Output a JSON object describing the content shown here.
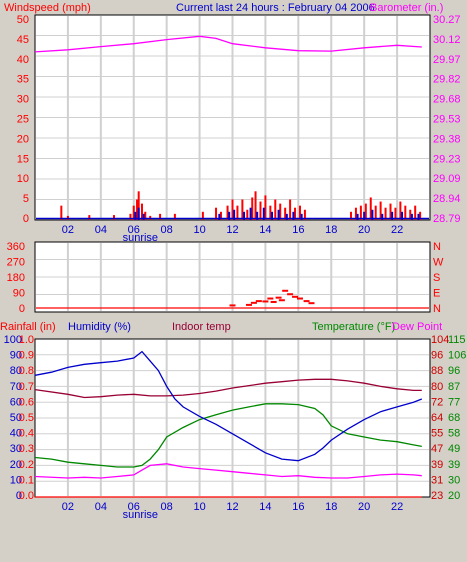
{
  "colors": {
    "background": "#d4d0c8",
    "plot_bg": "#ffffff",
    "grid": "#d0d0d0",
    "red": "#ff0000",
    "blue": "#0000cc",
    "magenta": "#ff00ff",
    "maroon": "#990033",
    "green": "#008800",
    "darkred": "#cc0000"
  },
  "header": {
    "title": "Current last 24 hours : February 04 2006"
  },
  "chart_data": [
    {
      "name": "wind-barometer",
      "type": "bar",
      "left_axis_label": "Windspeed (mph)",
      "right_axis_label": "Barometer (in.)",
      "left_ticks": [
        "50",
        "45",
        "40",
        "35",
        "30",
        "25",
        "20",
        "15",
        "10",
        "5",
        "0"
      ],
      "right_ticks": [
        "30.27",
        "30.12",
        "29.97",
        "29.82",
        "29.68",
        "29.53",
        "29.38",
        "29.23",
        "29.09",
        "28.94",
        "28.79"
      ],
      "ylim": [
        0,
        50
      ],
      "ylim_right": [
        28.79,
        30.27
      ],
      "x_ticks": [
        "02",
        "04",
        "06",
        "08",
        "10",
        "12",
        "14",
        "16",
        "18",
        "20",
        "22"
      ],
      "sunrise_label": "sunrise",
      "barometer_curve": [
        [
          0,
          41
        ],
        [
          2,
          41.5
        ],
        [
          4,
          42.3
        ],
        [
          6,
          43
        ],
        [
          8,
          44
        ],
        [
          10,
          44.8
        ],
        [
          11,
          44.3
        ],
        [
          12,
          43
        ],
        [
          14,
          42
        ],
        [
          16,
          41.3
        ],
        [
          18,
          41.2
        ],
        [
          20,
          42
        ],
        [
          22,
          42.6
        ],
        [
          23.5,
          42.2
        ]
      ],
      "gust_bars": [
        [
          1.6,
          3.5
        ],
        [
          2,
          1
        ],
        [
          3.3,
          1.2
        ],
        [
          4.8,
          1.2
        ],
        [
          5.8,
          1.5
        ],
        [
          6,
          3.5
        ],
        [
          6.2,
          5
        ],
        [
          6.3,
          7
        ],
        [
          6.5,
          4
        ],
        [
          6.7,
          2
        ],
        [
          7,
          1
        ],
        [
          7.6,
          1.5
        ],
        [
          8.5,
          1.5
        ],
        [
          10.2,
          2
        ],
        [
          11,
          3
        ],
        [
          11.3,
          2
        ],
        [
          11.7,
          3.5
        ],
        [
          12,
          5
        ],
        [
          12.3,
          3.5
        ],
        [
          12.6,
          5
        ],
        [
          12.9,
          2.5
        ],
        [
          13.2,
          5.5
        ],
        [
          13.4,
          7
        ],
        [
          13.7,
          4.5
        ],
        [
          14,
          6
        ],
        [
          14.3,
          3.5
        ],
        [
          14.6,
          5
        ],
        [
          14.9,
          4
        ],
        [
          15.2,
          3
        ],
        [
          15.5,
          5
        ],
        [
          15.8,
          3
        ],
        [
          16.1,
          3.5
        ],
        [
          16.4,
          2.5
        ],
        [
          19.2,
          2
        ],
        [
          19.5,
          3
        ],
        [
          19.8,
          3.5
        ],
        [
          20.1,
          4
        ],
        [
          20.4,
          5.5
        ],
        [
          20.7,
          3.5
        ],
        [
          21,
          4.5
        ],
        [
          21.3,
          3
        ],
        [
          21.6,
          4
        ],
        [
          21.9,
          3
        ],
        [
          22.2,
          4.5
        ],
        [
          22.5,
          3.5
        ],
        [
          22.8,
          2.5
        ],
        [
          23.1,
          3.5
        ],
        [
          23.4,
          2
        ]
      ],
      "wind_bars": [
        [
          6.1,
          2
        ],
        [
          6.3,
          3
        ],
        [
          6.6,
          1.5
        ],
        [
          11.2,
          1.5
        ],
        [
          11.8,
          2
        ],
        [
          12.1,
          2.5
        ],
        [
          12.7,
          2
        ],
        [
          13.1,
          3
        ],
        [
          13.5,
          2
        ],
        [
          13.9,
          3
        ],
        [
          14.4,
          2
        ],
        [
          14.8,
          2.5
        ],
        [
          15.3,
          1.5
        ],
        [
          15.7,
          2
        ],
        [
          16.2,
          1.5
        ],
        [
          19.6,
          1.5
        ],
        [
          20,
          2
        ],
        [
          20.5,
          2.5
        ],
        [
          21.1,
          1.5
        ],
        [
          21.7,
          2
        ],
        [
          22.3,
          2
        ],
        [
          22.9,
          1.5
        ],
        [
          23.3,
          1.5
        ]
      ]
    },
    {
      "name": "wind-direction",
      "type": "scatter",
      "left_ticks": [
        "360",
        "270",
        "180",
        "90",
        "0"
      ],
      "right_ticks": [
        "N",
        "W",
        "S",
        "E",
        "N"
      ],
      "ylim": [
        0,
        360
      ],
      "points": [
        [
          12,
          15
        ],
        [
          13,
          18
        ],
        [
          13.3,
          30
        ],
        [
          13.6,
          40
        ],
        [
          14,
          38
        ],
        [
          14.3,
          55
        ],
        [
          14.5,
          35
        ],
        [
          14.8,
          60
        ],
        [
          15,
          45
        ],
        [
          15.2,
          100
        ],
        [
          15.5,
          80
        ],
        [
          15.8,
          65
        ],
        [
          16.1,
          55
        ],
        [
          16.5,
          40
        ],
        [
          16.8,
          28
        ]
      ]
    },
    {
      "name": "rain-humidity-temp",
      "type": "line",
      "labels": {
        "rainfall": "Rainfall (in)",
        "humidity": "Humidity (%)",
        "indoor": "Indoor temp",
        "temperature": "Temperature (°F)",
        "dewpoint": "Dew Point"
      },
      "humidity_ticks": [
        "100",
        "90",
        "80",
        "70",
        "60",
        "50",
        "40",
        "30",
        "20",
        "10",
        "0"
      ],
      "rain_ticks": [
        "1.0",
        "0.9",
        "0.8",
        "0.7",
        "0.6",
        "0.5",
        "0.4",
        "0.3",
        "0.2",
        "0.1",
        "0.0"
      ],
      "right_ticks_a": [
        "104",
        "96",
        "88",
        "80",
        "72",
        "64",
        "55",
        "47",
        "39",
        "31",
        "23"
      ],
      "right_ticks_b": [
        "115",
        "106",
        "96",
        "87",
        "77",
        "68",
        "58",
        "49",
        "39",
        "30",
        "20"
      ],
      "ylim": [
        0,
        100
      ],
      "x_ticks": [
        "02",
        "04",
        "06",
        "08",
        "10",
        "12",
        "14",
        "16",
        "18",
        "20",
        "22"
      ],
      "sunrise_label": "sunrise",
      "humidity": [
        [
          0,
          77
        ],
        [
          1,
          79
        ],
        [
          2,
          82
        ],
        [
          3,
          84
        ],
        [
          4,
          85
        ],
        [
          5,
          86
        ],
        [
          6,
          88
        ],
        [
          6.5,
          92
        ],
        [
          7,
          86
        ],
        [
          7.5,
          80
        ],
        [
          8,
          70
        ],
        [
          8.5,
          62
        ],
        [
          9,
          57
        ],
        [
          10,
          51
        ],
        [
          11,
          46
        ],
        [
          12,
          40
        ],
        [
          13,
          34
        ],
        [
          14,
          28
        ],
        [
          15,
          24
        ],
        [
          16,
          23
        ],
        [
          17,
          27
        ],
        [
          17.5,
          31
        ],
        [
          18,
          36
        ],
        [
          19,
          43
        ],
        [
          20,
          49
        ],
        [
          21,
          54
        ],
        [
          22,
          57
        ],
        [
          23,
          60
        ],
        [
          23.5,
          62
        ]
      ],
      "indoor": [
        [
          0,
          68
        ],
        [
          2,
          65
        ],
        [
          3,
          63
        ],
        [
          4,
          63.5
        ],
        [
          5,
          64.5
        ],
        [
          6,
          65
        ],
        [
          7,
          64
        ],
        [
          8,
          64
        ],
        [
          9,
          64.5
        ],
        [
          10,
          65.5
        ],
        [
          11,
          67
        ],
        [
          12,
          69
        ],
        [
          13,
          70.5
        ],
        [
          14,
          72
        ],
        [
          15,
          73
        ],
        [
          16,
          74
        ],
        [
          17,
          74.5
        ],
        [
          18,
          74.5
        ],
        [
          19,
          73.5
        ],
        [
          20,
          72
        ],
        [
          21,
          70
        ],
        [
          22,
          68.5
        ],
        [
          23,
          67.5
        ],
        [
          23.5,
          67.5
        ]
      ],
      "temperature": [
        [
          0,
          25
        ],
        [
          1,
          24
        ],
        [
          2,
          22
        ],
        [
          3,
          21
        ],
        [
          4,
          20
        ],
        [
          5,
          19
        ],
        [
          6,
          19
        ],
        [
          6.5,
          20
        ],
        [
          7,
          24
        ],
        [
          7.5,
          30
        ],
        [
          8,
          38
        ],
        [
          9,
          44
        ],
        [
          10,
          49
        ],
        [
          11,
          52
        ],
        [
          12,
          55
        ],
        [
          13,
          57
        ],
        [
          14,
          59
        ],
        [
          15,
          59
        ],
        [
          16,
          58.5
        ],
        [
          17,
          56
        ],
        [
          17.5,
          52
        ],
        [
          18,
          45
        ],
        [
          19,
          40
        ],
        [
          20,
          38
        ],
        [
          21,
          36
        ],
        [
          22,
          35
        ],
        [
          23,
          33
        ],
        [
          23.5,
          32
        ]
      ],
      "dewpoint": [
        [
          0,
          13
        ],
        [
          2,
          12
        ],
        [
          3,
          12.5
        ],
        [
          4,
          12
        ],
        [
          5,
          13
        ],
        [
          6,
          14
        ],
        [
          6.5,
          17
        ],
        [
          7,
          20
        ],
        [
          8,
          21
        ],
        [
          9,
          19
        ],
        [
          10,
          18
        ],
        [
          11,
          17
        ],
        [
          12,
          16
        ],
        [
          13,
          15
        ],
        [
          14,
          14
        ],
        [
          15,
          13
        ],
        [
          16,
          13.5
        ],
        [
          17,
          12.5
        ],
        [
          18,
          12
        ],
        [
          19,
          12
        ],
        [
          20,
          13
        ],
        [
          21,
          14
        ],
        [
          22,
          14.5
        ],
        [
          23,
          14
        ],
        [
          23.5,
          13.5
        ]
      ],
      "rainfall": [
        [
          0,
          0
        ],
        [
          23.5,
          0
        ]
      ]
    }
  ]
}
